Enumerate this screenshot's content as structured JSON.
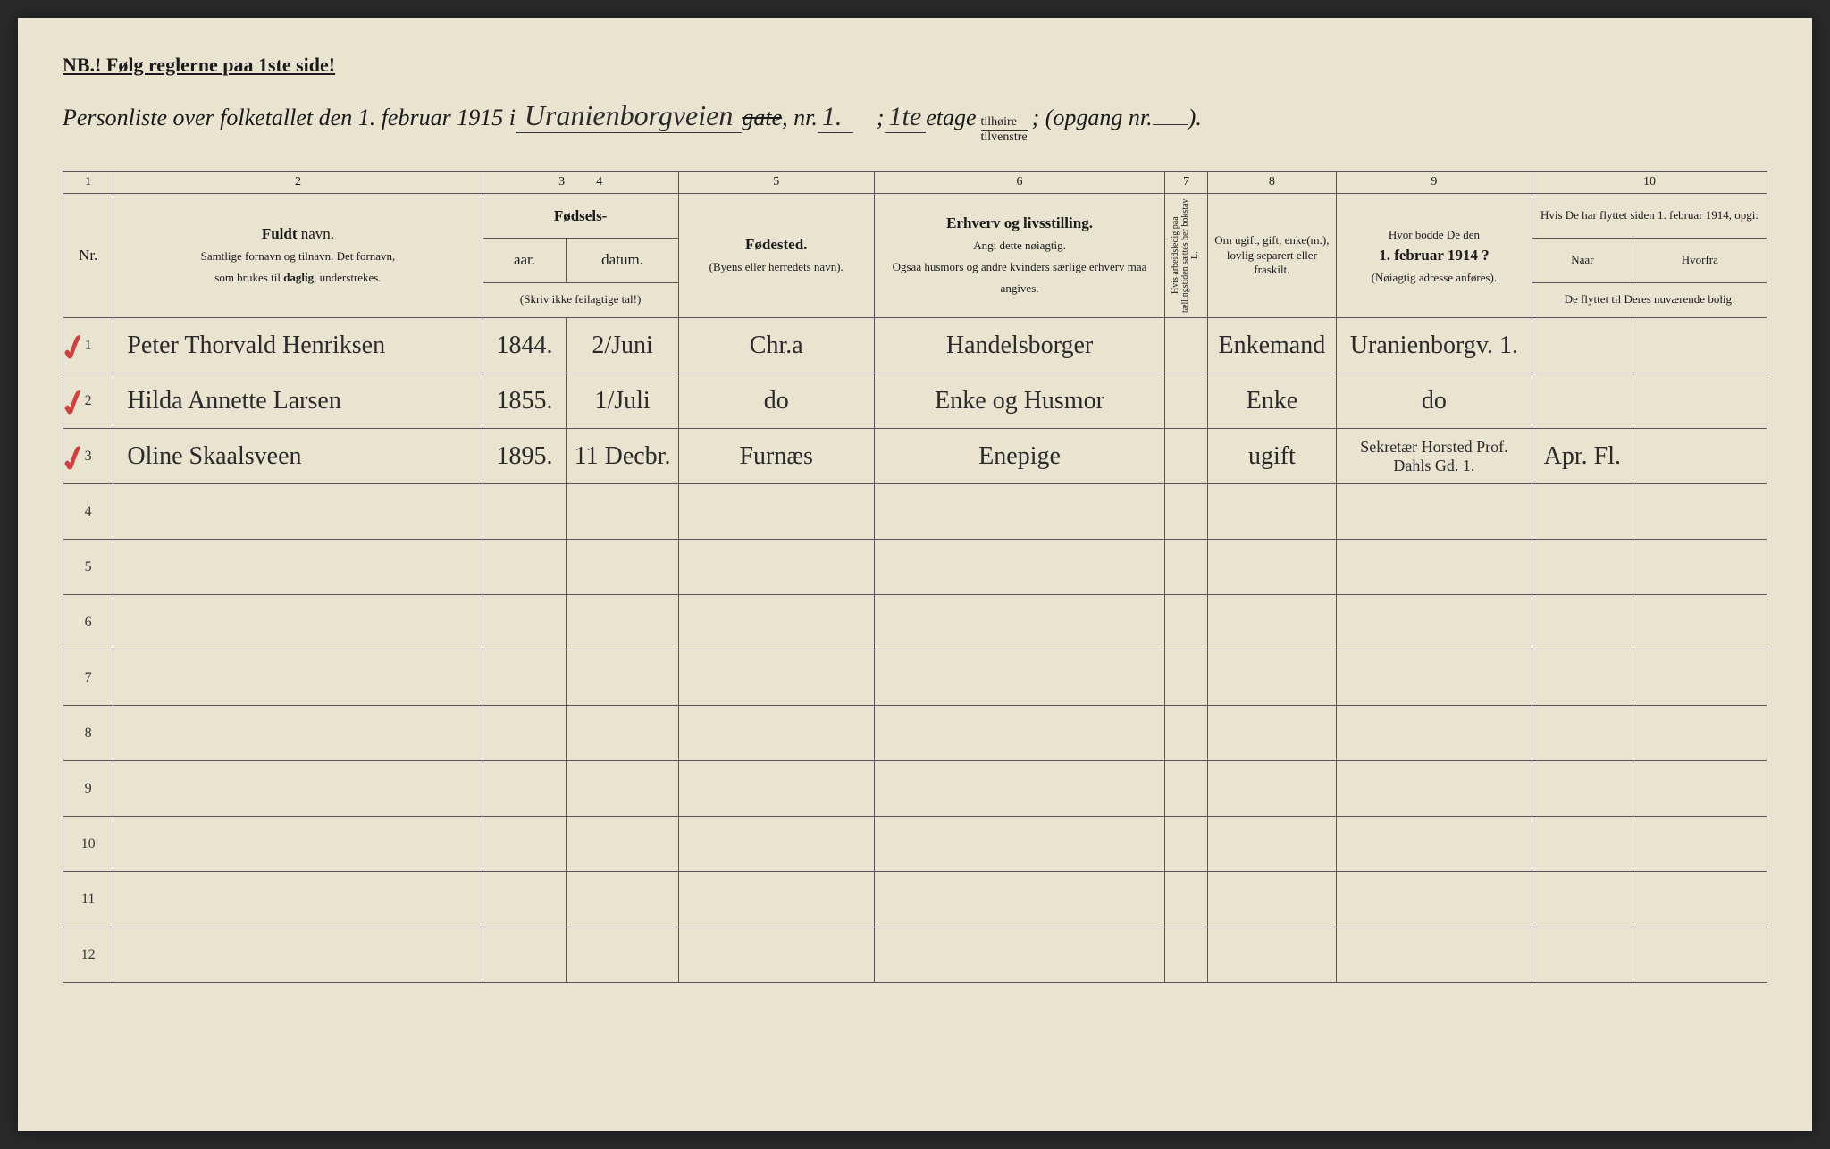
{
  "header": {
    "note": "NB.! Følg reglerne paa 1ste side!",
    "title_prefix": "Personliste over folketallet den 1. februar 1915 i",
    "street": "Uranienborgveien",
    "gate_struck": "gate",
    "nr_label": ", nr.",
    "nr_value": "1.",
    "separator": ";",
    "etage_value": "1te",
    "etage_label": "etage",
    "fraction_top": "tilhøire",
    "fraction_bottom": "tilvenstre",
    "opgang_label": "; (opgang nr.",
    "opgang_value": "",
    "closing": ")."
  },
  "columns": {
    "nums": [
      "1",
      "2",
      "3",
      "4",
      "5",
      "6",
      "7",
      "8",
      "9",
      "10"
    ],
    "nr": "Nr.",
    "name_bold": "Fuldt",
    "name_rest": " navn.",
    "name_sub1": "Samtlige fornavn og tilnavn. Det fornavn,",
    "name_sub2": "som brukes til ",
    "name_sub2_bold": "daglig",
    "name_sub2_end": ", understrekes.",
    "fodsels": "Fødsels-",
    "aar": "aar.",
    "datum": "datum.",
    "aar_sub": "(Skriv ikke feilagtige tal!)",
    "fodested": "Fødested.",
    "fodested_sub": "(Byens eller herredets navn).",
    "erhverv_bold": "Erhverv og livsstilling.",
    "erhverv_sub1": "Angi dette nøiagtig.",
    "erhverv_sub2": "Ogsaa husmors og andre kvinders særlige erhverv maa angives.",
    "col7": "Hvis arbeidsledig paa tællingstiden sættes her bokstav L.",
    "col8": "Om ugift, gift, enke(m.), lovlig separert eller fraskilt.",
    "col9_line1": "Hvor bodde De den",
    "col9_bold": "1. februar 1914 ?",
    "col9_sub": "(Nøiagtig adresse anføres).",
    "col10_top": "Hvis De har flyttet siden 1. februar 1914, opgi:",
    "col10_naar": "Naar",
    "col10_hvorfra": "Hvorfra",
    "col10_sub": "De flyttet til Deres nuværende bolig."
  },
  "rows": [
    {
      "num": "1",
      "red_mark": true,
      "name": "Peter Thorvald Henriksen",
      "aar": "1844.",
      "datum": "2/Juni",
      "fodested": "Chr.a",
      "erhverv": "Handelsborger",
      "col7": "",
      "status": "Enkemand",
      "bodde": "Uranienborgv. 1.",
      "naar": "",
      "hvorfra": ""
    },
    {
      "num": "2",
      "red_mark": true,
      "name": "Hilda Annette Larsen",
      "aar": "1855.",
      "datum": "1/Juli",
      "fodested": "do",
      "erhverv": "Enke og Husmor",
      "col7": "",
      "status": "Enke",
      "bodde": "do",
      "naar": "",
      "hvorfra": ""
    },
    {
      "num": "3",
      "red_mark": true,
      "name": "Oline Skaalsveen",
      "aar": "1895.",
      "datum": "11 Decbr.",
      "fodested": "Furnæs",
      "erhverv": "Enepige",
      "col7": "",
      "status": "ugift",
      "bodde": "Sekretær Horsted Prof. Dahls Gd. 1.",
      "naar": "Apr. Fl.",
      "hvorfra": ""
    },
    {
      "num": "4",
      "red_mark": false,
      "name": "",
      "aar": "",
      "datum": "",
      "fodested": "",
      "erhverv": "",
      "col7": "",
      "status": "",
      "bodde": "",
      "naar": "",
      "hvorfra": ""
    },
    {
      "num": "5",
      "red_mark": false,
      "name": "",
      "aar": "",
      "datum": "",
      "fodested": "",
      "erhverv": "",
      "col7": "",
      "status": "",
      "bodde": "",
      "naar": "",
      "hvorfra": ""
    },
    {
      "num": "6",
      "red_mark": false,
      "name": "",
      "aar": "",
      "datum": "",
      "fodested": "",
      "erhverv": "",
      "col7": "",
      "status": "",
      "bodde": "",
      "naar": "",
      "hvorfra": ""
    },
    {
      "num": "7",
      "red_mark": false,
      "name": "",
      "aar": "",
      "datum": "",
      "fodested": "",
      "erhverv": "",
      "col7": "",
      "status": "",
      "bodde": "",
      "naar": "",
      "hvorfra": ""
    },
    {
      "num": "8",
      "red_mark": false,
      "name": "",
      "aar": "",
      "datum": "",
      "fodested": "",
      "erhverv": "",
      "col7": "",
      "status": "",
      "bodde": "",
      "naar": "",
      "hvorfra": ""
    },
    {
      "num": "9",
      "red_mark": false,
      "name": "",
      "aar": "",
      "datum": "",
      "fodested": "",
      "erhverv": "",
      "col7": "",
      "status": "",
      "bodde": "",
      "naar": "",
      "hvorfra": ""
    },
    {
      "num": "10",
      "red_mark": false,
      "name": "",
      "aar": "",
      "datum": "",
      "fodested": "",
      "erhverv": "",
      "col7": "",
      "status": "",
      "bodde": "",
      "naar": "",
      "hvorfra": ""
    },
    {
      "num": "11",
      "red_mark": false,
      "name": "",
      "aar": "",
      "datum": "",
      "fodested": "",
      "erhverv": "",
      "col7": "",
      "status": "",
      "bodde": "",
      "naar": "",
      "hvorfra": ""
    },
    {
      "num": "12",
      "red_mark": false,
      "name": "",
      "aar": "",
      "datum": "",
      "fodested": "",
      "erhverv": "",
      "col7": "",
      "status": "",
      "bodde": "",
      "naar": "",
      "hvorfra": ""
    }
  ]
}
